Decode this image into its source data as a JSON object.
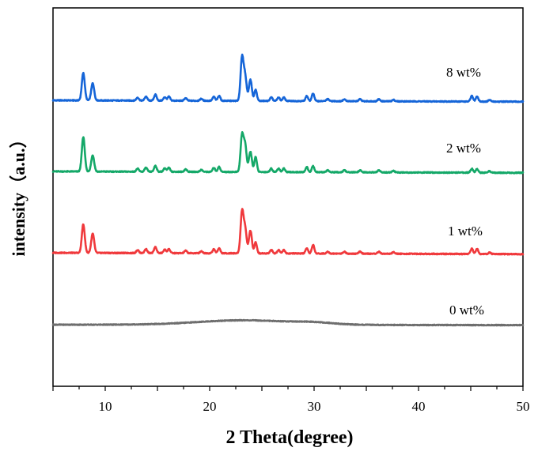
{
  "chart_data": {
    "type": "line",
    "title": "",
    "xlabel": "2 Theta(degree)",
    "ylabel": "intensity（a.u.）",
    "xlim": [
      5,
      50
    ],
    "xticks": [
      10,
      20,
      30,
      40,
      50
    ],
    "grid": false,
    "legend": "none",
    "series": [
      {
        "name": "8 wt%",
        "color": "#1565d8",
        "baseline": 0.96,
        "peaks": [
          [
            7.9,
            0.54
          ],
          [
            8.8,
            0.34
          ],
          [
            13.1,
            0.06
          ],
          [
            13.9,
            0.08
          ],
          [
            14.8,
            0.12
          ],
          [
            15.7,
            0.07
          ],
          [
            16.1,
            0.08
          ],
          [
            17.7,
            0.05
          ],
          [
            19.2,
            0.04
          ],
          [
            20.4,
            0.08
          ],
          [
            20.9,
            0.1
          ],
          [
            23.1,
            0.85
          ],
          [
            23.4,
            0.48
          ],
          [
            23.9,
            0.42
          ],
          [
            24.4,
            0.22
          ],
          [
            25.9,
            0.07
          ],
          [
            26.6,
            0.07
          ],
          [
            27.1,
            0.07
          ],
          [
            29.3,
            0.1
          ],
          [
            29.9,
            0.15
          ],
          [
            31.3,
            0.04
          ],
          [
            32.9,
            0.04
          ],
          [
            34.4,
            0.04
          ],
          [
            36.2,
            0.04
          ],
          [
            37.6,
            0.03
          ],
          [
            45.1,
            0.11
          ],
          [
            45.6,
            0.1
          ],
          [
            46.8,
            0.03
          ]
        ]
      },
      {
        "name": "2 wt%",
        "color": "#14a868",
        "baseline": 0.98,
        "peaks": [
          [
            7.9,
            0.68
          ],
          [
            8.8,
            0.32
          ],
          [
            13.1,
            0.06
          ],
          [
            13.9,
            0.08
          ],
          [
            14.8,
            0.12
          ],
          [
            15.7,
            0.07
          ],
          [
            16.1,
            0.08
          ],
          [
            17.7,
            0.05
          ],
          [
            19.2,
            0.04
          ],
          [
            20.4,
            0.08
          ],
          [
            20.9,
            0.1
          ],
          [
            23.1,
            0.72
          ],
          [
            23.4,
            0.52
          ],
          [
            23.9,
            0.4
          ],
          [
            24.4,
            0.3
          ],
          [
            25.9,
            0.07
          ],
          [
            26.6,
            0.07
          ],
          [
            27.1,
            0.07
          ],
          [
            29.3,
            0.1
          ],
          [
            29.9,
            0.12
          ],
          [
            31.3,
            0.04
          ],
          [
            32.9,
            0.04
          ],
          [
            34.4,
            0.04
          ],
          [
            36.2,
            0.04
          ],
          [
            37.6,
            0.03
          ],
          [
            45.1,
            0.08
          ],
          [
            45.6,
            0.07
          ],
          [
            46.8,
            0.03
          ]
        ]
      },
      {
        "name": "1 wt%",
        "color": "#f0393c",
        "baseline": 1.0,
        "peaks": [
          [
            7.9,
            0.56
          ],
          [
            8.8,
            0.38
          ],
          [
            13.1,
            0.06
          ],
          [
            13.9,
            0.08
          ],
          [
            14.8,
            0.12
          ],
          [
            15.7,
            0.07
          ],
          [
            16.1,
            0.08
          ],
          [
            17.7,
            0.05
          ],
          [
            19.2,
            0.04
          ],
          [
            20.4,
            0.08
          ],
          [
            20.9,
            0.1
          ],
          [
            23.1,
            0.82
          ],
          [
            23.4,
            0.48
          ],
          [
            23.9,
            0.45
          ],
          [
            24.4,
            0.22
          ],
          [
            25.9,
            0.07
          ],
          [
            26.6,
            0.07
          ],
          [
            27.1,
            0.07
          ],
          [
            29.3,
            0.1
          ],
          [
            29.9,
            0.17
          ],
          [
            31.3,
            0.04
          ],
          [
            32.9,
            0.04
          ],
          [
            34.4,
            0.04
          ],
          [
            36.2,
            0.04
          ],
          [
            37.6,
            0.03
          ],
          [
            45.1,
            0.11
          ],
          [
            45.6,
            0.1
          ],
          [
            46.8,
            0.03
          ]
        ]
      },
      {
        "name": "0 wt%",
        "color": "#6e6e6e",
        "baseline": 1.0,
        "peaks": [
          [
            23.3,
            0.09
          ],
          [
            30.0,
            0.03
          ]
        ]
      }
    ]
  }
}
